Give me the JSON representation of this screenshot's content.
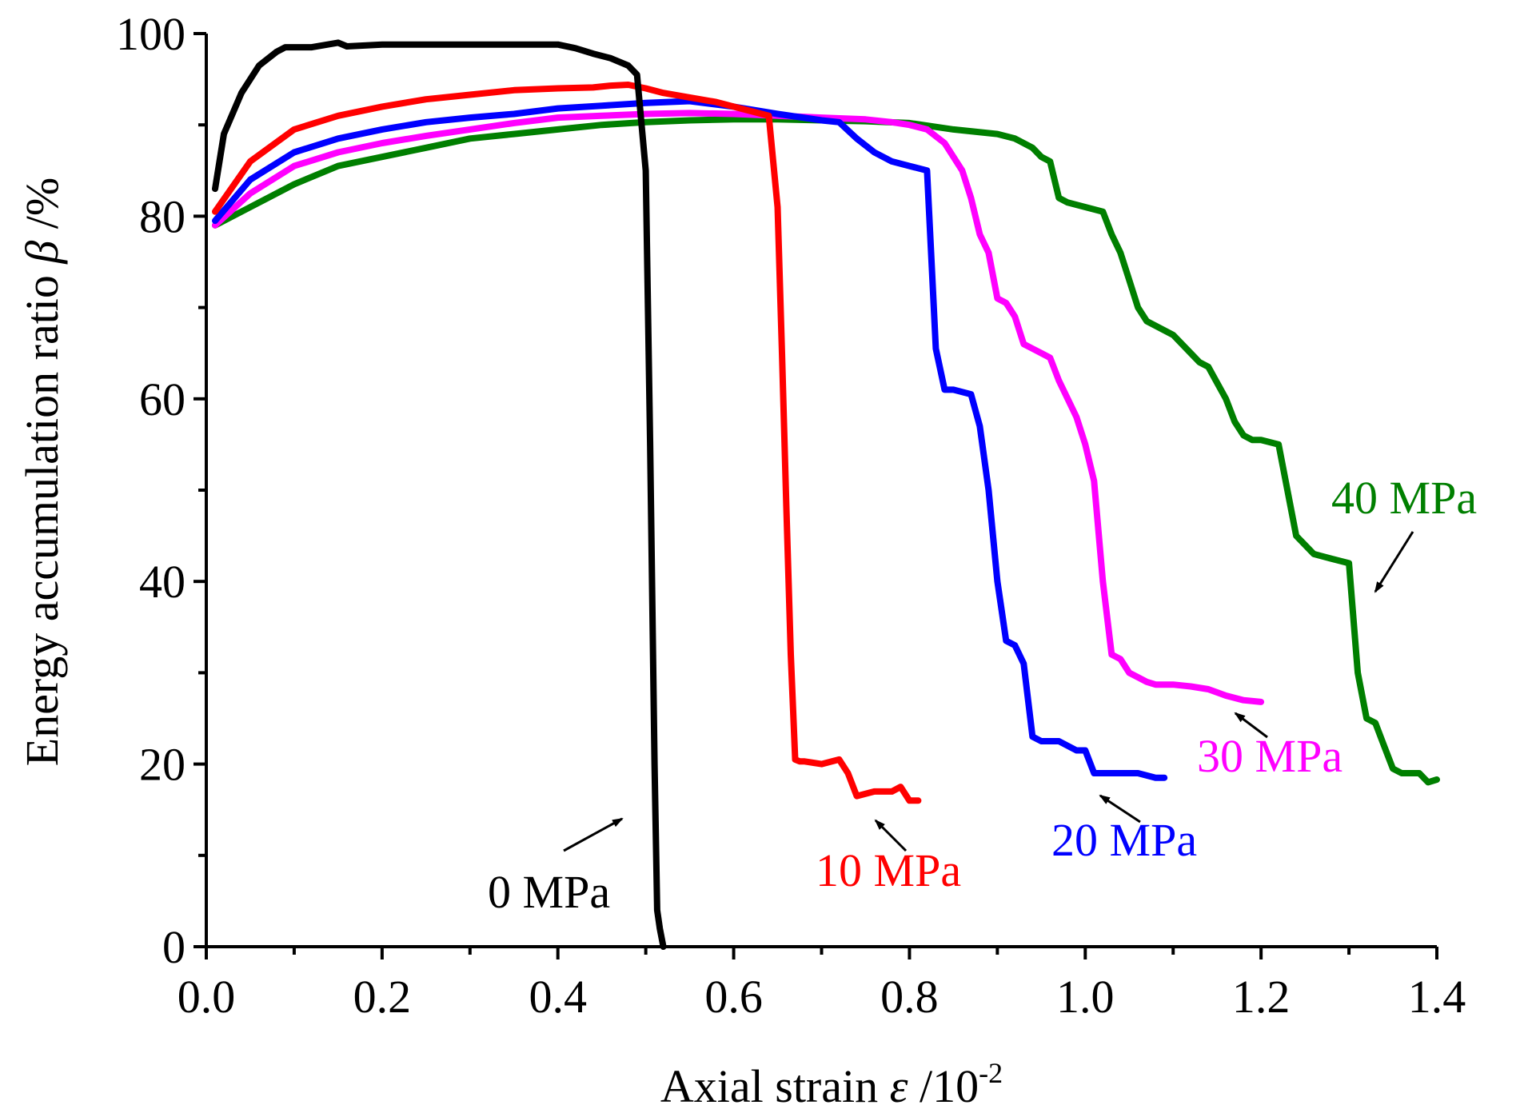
{
  "chart_data": {
    "type": "line",
    "title": "",
    "xlabel_text": "Axial strain",
    "xlabel_symbol": "ε",
    "xlabel_unit_base": " /10",
    "xlabel_unit_exp": "-2",
    "ylabel_text": "Energy accumulation ratio",
    "ylabel_symbol": "β",
    "ylabel_unit": " /%",
    "xlim": [
      0.0,
      1.4
    ],
    "ylim": [
      0,
      100
    ],
    "xticks": [
      0.0,
      0.2,
      0.4,
      0.6,
      0.8,
      1.0,
      1.2,
      1.4
    ],
    "xtick_labels": [
      "0.0",
      "0.2",
      "0.4",
      "0.6",
      "0.8",
      "1.0",
      "1.2",
      "1.4"
    ],
    "yticks": [
      0,
      20,
      40,
      60,
      80,
      100
    ],
    "ytick_labels": [
      "0",
      "20",
      "40",
      "60",
      "80",
      "100"
    ],
    "grid": false,
    "series": [
      {
        "name": "0 MPa",
        "color": "#000000",
        "x": [
          0.01,
          0.02,
          0.04,
          0.06,
          0.08,
          0.09,
          0.12,
          0.15,
          0.16,
          0.2,
          0.3,
          0.35,
          0.4,
          0.42,
          0.44,
          0.46,
          0.48,
          0.49,
          0.5,
          0.505,
          0.51,
          0.513,
          0.516,
          0.52
        ],
        "values": [
          83,
          89,
          93.5,
          96.5,
          98,
          98.5,
          98.5,
          99,
          98.6,
          98.8,
          98.8,
          98.8,
          98.8,
          98.4,
          97.8,
          97.3,
          96.5,
          95.5,
          85,
          55,
          20,
          4,
          2,
          0
        ]
      },
      {
        "name": "10 MPa",
        "color": "#ff0000",
        "x": [
          0.01,
          0.05,
          0.1,
          0.15,
          0.2,
          0.25,
          0.3,
          0.35,
          0.4,
          0.44,
          0.46,
          0.48,
          0.5,
          0.52,
          0.55,
          0.58,
          0.62,
          0.64,
          0.65,
          0.655,
          0.66,
          0.665,
          0.67,
          0.675,
          0.68,
          0.7,
          0.72,
          0.73,
          0.74,
          0.76,
          0.78,
          0.79,
          0.8,
          0.81
        ],
        "values": [
          80.5,
          86,
          89.5,
          91,
          92,
          92.8,
          93.3,
          93.8,
          94,
          94.1,
          94.3,
          94.4,
          94,
          93.5,
          93,
          92.5,
          91.5,
          91,
          81,
          65,
          48,
          32,
          20.5,
          20.3,
          20.3,
          20,
          20.5,
          19,
          16.5,
          17,
          17,
          17.5,
          16,
          16
        ]
      },
      {
        "name": "20 MPa",
        "color": "#0000ff",
        "x": [
          0.01,
          0.05,
          0.1,
          0.15,
          0.2,
          0.25,
          0.3,
          0.35,
          0.4,
          0.45,
          0.5,
          0.55,
          0.6,
          0.65,
          0.7,
          0.72,
          0.74,
          0.76,
          0.78,
          0.8,
          0.82,
          0.83,
          0.84,
          0.85,
          0.87,
          0.88,
          0.89,
          0.9,
          0.91,
          0.92,
          0.93,
          0.94,
          0.95,
          0.97,
          0.99,
          1.0,
          1.01,
          1.02,
          1.04,
          1.06,
          1.08,
          1.09
        ],
        "values": [
          79.5,
          84,
          87,
          88.5,
          89.5,
          90.3,
          90.8,
          91.2,
          91.8,
          92.1,
          92.4,
          92.6,
          92,
          91.2,
          90.5,
          90.3,
          88.5,
          87,
          86,
          85.5,
          85,
          65.5,
          61,
          61,
          60.5,
          57,
          50,
          40,
          33.5,
          33,
          31,
          23,
          22.5,
          22.5,
          21.5,
          21.5,
          19,
          19,
          19,
          19,
          18.5,
          18.5
        ]
      },
      {
        "name": "30 MPa",
        "color": "#ff00ff",
        "x": [
          0.01,
          0.05,
          0.1,
          0.15,
          0.2,
          0.25,
          0.3,
          0.35,
          0.4,
          0.45,
          0.5,
          0.55,
          0.6,
          0.65,
          0.7,
          0.75,
          0.78,
          0.8,
          0.82,
          0.84,
          0.86,
          0.87,
          0.88,
          0.89,
          0.9,
          0.91,
          0.92,
          0.93,
          0.94,
          0.95,
          0.96,
          0.97,
          0.98,
          0.99,
          1.0,
          1.01,
          1.02,
          1.03,
          1.04,
          1.05,
          1.06,
          1.07,
          1.08,
          1.1,
          1.12,
          1.14,
          1.16,
          1.18,
          1.2
        ],
        "values": [
          79,
          82.5,
          85.5,
          87,
          88,
          88.8,
          89.5,
          90.2,
          90.8,
          91,
          91.2,
          91.3,
          91.2,
          91,
          90.8,
          90.6,
          90.3,
          90,
          89.5,
          88,
          85,
          82,
          78,
          76,
          71,
          70.5,
          69,
          66,
          65.5,
          65,
          64.5,
          62,
          60,
          58,
          55,
          51,
          40,
          32,
          31.5,
          30,
          29.5,
          29,
          28.7,
          28.7,
          28.5,
          28.2,
          27.5,
          27,
          26.8
        ]
      },
      {
        "name": "40 MPa",
        "color": "#007f00",
        "x": [
          0.01,
          0.05,
          0.1,
          0.15,
          0.2,
          0.25,
          0.3,
          0.35,
          0.4,
          0.45,
          0.5,
          0.55,
          0.6,
          0.65,
          0.7,
          0.75,
          0.8,
          0.85,
          0.9,
          0.92,
          0.94,
          0.95,
          0.96,
          0.97,
          0.98,
          1.0,
          1.02,
          1.03,
          1.04,
          1.05,
          1.06,
          1.07,
          1.08,
          1.1,
          1.12,
          1.13,
          1.14,
          1.16,
          1.17,
          1.18,
          1.19,
          1.2,
          1.22,
          1.23,
          1.24,
          1.25,
          1.26,
          1.28,
          1.3,
          1.31,
          1.32,
          1.33,
          1.34,
          1.35,
          1.36,
          1.38,
          1.39,
          1.4
        ],
        "values": [
          79,
          81,
          83.5,
          85.5,
          86.5,
          87.5,
          88.5,
          89,
          89.5,
          90,
          90.3,
          90.5,
          90.6,
          90.6,
          90.5,
          90.4,
          90.2,
          89.5,
          89,
          88.5,
          87.5,
          86.5,
          86,
          82,
          81.5,
          81,
          80.5,
          78,
          76,
          73,
          70,
          68.5,
          68,
          67,
          65,
          64,
          63.5,
          60,
          57.5,
          56,
          55.5,
          55.5,
          55,
          50,
          45,
          44,
          43,
          42.5,
          42,
          30,
          25,
          24.5,
          22,
          19.5,
          19,
          19,
          18,
          18.3
        ]
      }
    ],
    "annotations": [
      {
        "text": "0 MPa",
        "series": 0
      },
      {
        "text": "10 MPa",
        "series": 1
      },
      {
        "text": "20 MPa",
        "series": 2
      },
      {
        "text": "30 MPa",
        "series": 3
      },
      {
        "text": "40 MPa",
        "series": 4
      }
    ]
  }
}
